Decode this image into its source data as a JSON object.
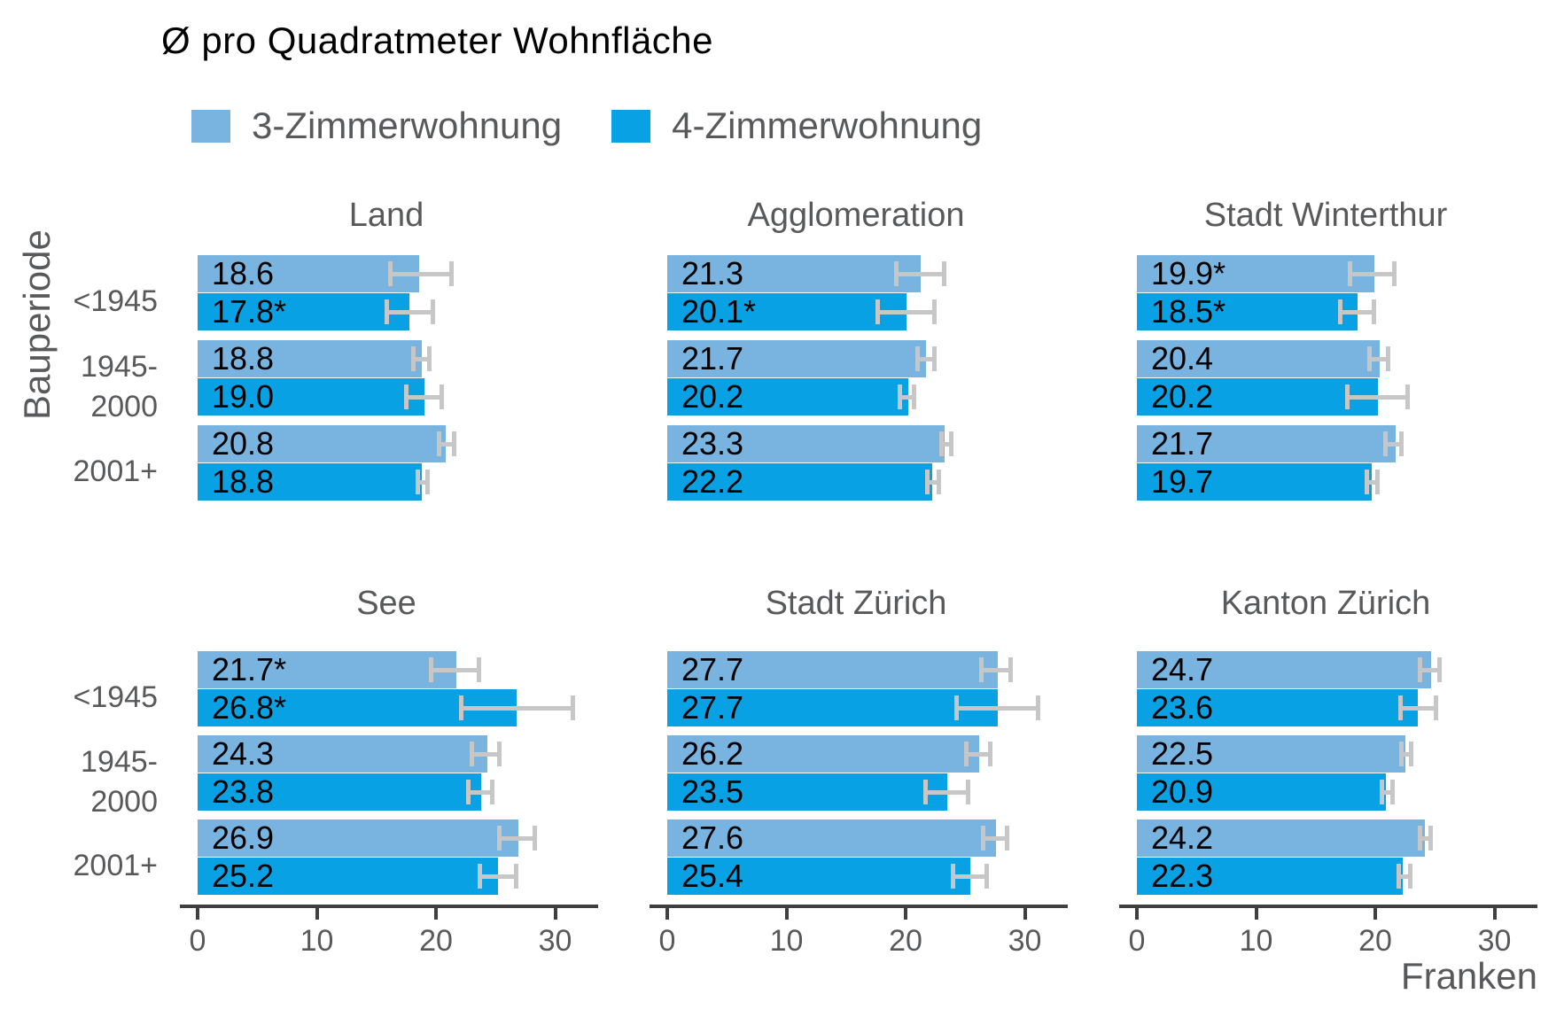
{
  "title": "Ø pro Quadratmeter Wohnfläche",
  "legend": {
    "items": [
      {
        "label": "3-Zimmerwohnung",
        "color": "#79B3DF"
      },
      {
        "label": "4-Zimmerwohnung",
        "color": "#08A1E3"
      }
    ]
  },
  "axis": {
    "x_ticks": [
      "0",
      "10",
      "20",
      "30"
    ],
    "x_tick_values": [
      0,
      10,
      20,
      30
    ],
    "xlabel": "Franken",
    "ylabel": "Bauperiode"
  },
  "colors": {
    "series_3_zimmer": "#79B3DF",
    "series_4_zimmer": "#08A1E3",
    "error_bar": "#C7C7C7",
    "axis_line": "#3F3F3F",
    "text_gray": "#58595B",
    "text_black": "#000000"
  },
  "chart_data": {
    "type": "bar",
    "orientation": "horizontal",
    "title": "Ø pro Quadratmeter Wohnfläche",
    "xlabel": "Franken",
    "ylabel": "Bauperiode",
    "xlim": [
      0,
      33.5
    ],
    "grid": false,
    "legend_position": "top",
    "categories": [
      "<1945",
      "1945-2000",
      "2001+"
    ],
    "category_display_lines": [
      [
        "<1945"
      ],
      [
        "1945-",
        "2000"
      ],
      [
        "2001+"
      ]
    ],
    "series_names": [
      "3-Zimmerwohnung",
      "4-Zimmerwohnung"
    ],
    "error_bars": "gray horizontal interval with end caps per bar",
    "facets": [
      {
        "name": "Land",
        "groups": [
          {
            "category": "<1945",
            "bars": [
              {
                "series": "3-Zimmerwohnung",
                "value": 18.6,
                "label": "18.6",
                "ci": [
                  16.0,
                  21.5
                ]
              },
              {
                "series": "4-Zimmerwohnung",
                "value": 17.8,
                "label": "17.8*",
                "ci": [
                  15.7,
                  19.9
                ]
              }
            ]
          },
          {
            "category": "1945-2000",
            "bars": [
              {
                "series": "3-Zimmerwohnung",
                "value": 18.8,
                "label": "18.8",
                "ci": [
                  17.9,
                  19.6
                ]
              },
              {
                "series": "4-Zimmerwohnung",
                "value": 19.0,
                "label": "19.0",
                "ci": [
                  17.3,
                  20.7
                ]
              }
            ]
          },
          {
            "category": "2001+",
            "bars": [
              {
                "series": "3-Zimmerwohnung",
                "value": 20.8,
                "label": "20.8",
                "ci": [
                  20.1,
                  21.7
                ]
              },
              {
                "series": "4-Zimmerwohnung",
                "value": 18.8,
                "label": "18.8",
                "ci": [
                  18.3,
                  19.5
                ]
              }
            ]
          }
        ]
      },
      {
        "name": "Agglomeration",
        "groups": [
          {
            "category": "<1945",
            "bars": [
              {
                "series": "3-Zimmerwohnung",
                "value": 21.3,
                "label": "21.3",
                "ci": [
                  19.0,
                  23.4
                ]
              },
              {
                "series": "4-Zimmerwohnung",
                "value": 20.1,
                "label": "20.1*",
                "ci": [
                  17.5,
                  22.6
                ]
              }
            ]
          },
          {
            "category": "1945-2000",
            "bars": [
              {
                "series": "3-Zimmerwohnung",
                "value": 21.7,
                "label": "21.7",
                "ci": [
                  20.8,
                  22.6
                ]
              },
              {
                "series": "4-Zimmerwohnung",
                "value": 20.2,
                "label": "20.2",
                "ci": [
                  19.3,
                  20.9
                ]
              }
            ]
          },
          {
            "category": "2001+",
            "bars": [
              {
                "series": "3-Zimmerwohnung",
                "value": 23.3,
                "label": "23.3",
                "ci": [
                  22.8,
                  24.0
                ]
              },
              {
                "series": "4-Zimmerwohnung",
                "value": 22.2,
                "label": "22.2",
                "ci": [
                  21.6,
                  23.0
                ]
              }
            ]
          }
        ]
      },
      {
        "name": "Stadt Winterthur",
        "groups": [
          {
            "category": "<1945",
            "bars": [
              {
                "series": "3-Zimmerwohnung",
                "value": 19.9,
                "label": "19.9*",
                "ci": [
                  17.7,
                  21.8
                ]
              },
              {
                "series": "4-Zimmerwohnung",
                "value": 18.5,
                "label": "18.5*",
                "ci": [
                  16.9,
                  20.1
                ]
              }
            ]
          },
          {
            "category": "1945-2000",
            "bars": [
              {
                "series": "3-Zimmerwohnung",
                "value": 20.4,
                "label": "20.4",
                "ci": [
                  19.3,
                  21.3
                ]
              },
              {
                "series": "4-Zimmerwohnung",
                "value": 20.2,
                "label": "20.2",
                "ci": [
                  17.5,
                  22.9
                ]
              }
            ]
          },
          {
            "category": "2001+",
            "bars": [
              {
                "series": "3-Zimmerwohnung",
                "value": 21.7,
                "label": "21.7",
                "ci": [
                  20.7,
                  22.4
                ]
              },
              {
                "series": "4-Zimmerwohnung",
                "value": 19.7,
                "label": "19.7",
                "ci": [
                  19.1,
                  20.4
                ]
              }
            ]
          }
        ]
      },
      {
        "name": "See",
        "groups": [
          {
            "category": "<1945",
            "bars": [
              {
                "series": "3-Zimmerwohnung",
                "value": 21.7,
                "label": "21.7*",
                "ci": [
                  19.4,
                  23.8
                ]
              },
              {
                "series": "4-Zimmerwohnung",
                "value": 26.8,
                "label": "26.8*",
                "ci": [
                  21.9,
                  31.7
                ]
              }
            ]
          },
          {
            "category": "1945-2000",
            "bars": [
              {
                "series": "3-Zimmerwohnung",
                "value": 24.3,
                "label": "24.3",
                "ci": [
                  22.8,
                  25.5
                ]
              },
              {
                "series": "4-Zimmerwohnung",
                "value": 23.8,
                "label": "23.8",
                "ci": [
                  22.5,
                  24.9
                ]
              }
            ]
          },
          {
            "category": "2001+",
            "bars": [
              {
                "series": "3-Zimmerwohnung",
                "value": 26.9,
                "label": "26.9",
                "ci": [
                  25.1,
                  28.5
                ]
              },
              {
                "series": "4-Zimmerwohnung",
                "value": 25.2,
                "label": "25.2",
                "ci": [
                  23.5,
                  26.9
                ]
              }
            ]
          }
        ]
      },
      {
        "name": "Stadt Zürich",
        "groups": [
          {
            "category": "<1945",
            "bars": [
              {
                "series": "3-Zimmerwohnung",
                "value": 27.7,
                "label": "27.7",
                "ci": [
                  26.2,
                  29.0
                ]
              },
              {
                "series": "4-Zimmerwohnung",
                "value": 27.7,
                "label": "27.7",
                "ci": [
                  24.1,
                  31.3
                ]
              }
            ]
          },
          {
            "category": "1945-2000",
            "bars": [
              {
                "series": "3-Zimmerwohnung",
                "value": 26.2,
                "label": "26.2",
                "ci": [
                  24.9,
                  27.3
                ]
              },
              {
                "series": "4-Zimmerwohnung",
                "value": 23.5,
                "label": "23.5",
                "ci": [
                  21.5,
                  25.4
                ]
              }
            ]
          },
          {
            "category": "2001+",
            "bars": [
              {
                "series": "3-Zimmerwohnung",
                "value": 27.6,
                "label": "27.6",
                "ci": [
                  26.3,
                  28.7
                ]
              },
              {
                "series": "4-Zimmerwohnung",
                "value": 25.4,
                "label": "25.4",
                "ci": [
                  23.8,
                  27.0
                ]
              }
            ]
          }
        ]
      },
      {
        "name": "Kanton Zürich",
        "groups": [
          {
            "category": "<1945",
            "bars": [
              {
                "series": "3-Zimmerwohnung",
                "value": 24.7,
                "label": "24.7",
                "ci": [
                  23.6,
                  25.6
                ]
              },
              {
                "series": "4-Zimmerwohnung",
                "value": 23.6,
                "label": "23.6",
                "ci": [
                  21.9,
                  25.3
                ]
              }
            ]
          },
          {
            "category": "1945-2000",
            "bars": [
              {
                "series": "3-Zimmerwohnung",
                "value": 22.5,
                "label": "22.5",
                "ci": [
                  22.0,
                  23.2
                ]
              },
              {
                "series": "4-Zimmerwohnung",
                "value": 20.9,
                "label": "20.9",
                "ci": [
                  20.4,
                  21.6
                ]
              }
            ]
          },
          {
            "category": "2001+",
            "bars": [
              {
                "series": "3-Zimmerwohnung",
                "value": 24.2,
                "label": "24.2",
                "ci": [
                  23.6,
                  24.8
                ]
              },
              {
                "series": "4-Zimmerwohnung",
                "value": 22.3,
                "label": "22.3",
                "ci": [
                  21.8,
                  23.1
                ]
              }
            ]
          }
        ]
      }
    ]
  }
}
